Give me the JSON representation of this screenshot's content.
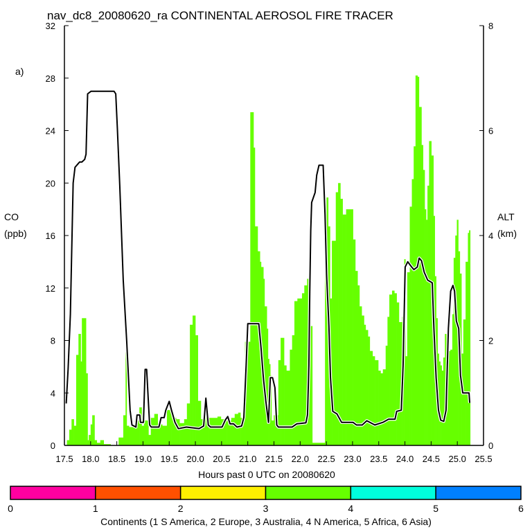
{
  "chart_data": {
    "type": "bar",
    "title": "nav_dc8_20080620_ra CONTINENTAL AEROSOL FIRE TRACER",
    "panel_label": "a)",
    "xlabel": "Hours past 0 UTC on 20080620",
    "ylabel": "CO",
    "ylabel_units": "(ppb)",
    "y2label": "ALT",
    "y2label_units": "(km)",
    "xlim": [
      17.5,
      25.5
    ],
    "ylim": [
      0,
      32
    ],
    "y2lim": [
      0,
      8
    ],
    "xticks": [
      "17.5",
      "18.0",
      "18.5",
      "19.0",
      "19.5",
      "20.0",
      "20.5",
      "21.0",
      "21.5",
      "22.0",
      "22.5",
      "23.0",
      "23.5",
      "24.0",
      "24.5",
      "25.0",
      "25.5"
    ],
    "yticks": [
      "0",
      "4",
      "8",
      "12",
      "16",
      "20",
      "24",
      "28",
      "32"
    ],
    "y2ticks": [
      "0",
      "2",
      "4",
      "6",
      "8"
    ],
    "bar_color": "#66ff00",
    "bars": {
      "name": "CO from N America (continent 4)",
      "x_start": [
        17.548,
        17.592,
        17.636,
        17.68,
        17.724,
        17.768,
        17.811,
        17.833,
        17.912,
        17.943,
        17.965,
        18.0,
        18.031,
        18.075,
        18.118,
        18.184,
        18.25,
        18.382,
        18.535,
        18.623,
        18.667,
        18.689,
        18.732,
        18.842,
        18.93,
        18.974,
        19.018,
        19.105,
        19.149,
        19.215,
        19.281,
        19.368,
        19.456,
        19.544,
        19.632,
        19.697,
        19.785,
        19.838,
        19.895,
        19.947,
        20.0,
        20.048,
        20.105,
        20.158,
        20.246,
        20.421,
        20.487,
        20.596,
        20.684,
        20.75,
        20.816,
        20.86,
        20.947,
        21.048,
        21.11,
        21.136,
        21.189,
        21.232,
        21.254,
        21.298,
        21.32,
        21.364,
        21.386,
        21.408,
        21.43,
        21.452,
        21.496,
        21.583,
        21.627,
        21.693,
        21.737,
        21.803,
        21.846,
        21.89,
        21.947,
        22.035,
        22.079,
        22.132,
        22.167,
        22.197,
        22.232,
        22.474,
        22.504,
        22.535,
        22.57,
        22.605,
        22.68,
        22.724,
        22.768,
        22.811,
        22.877,
        23.009,
        23.053,
        23.096,
        23.132,
        23.175,
        23.219,
        23.25,
        23.294,
        23.329,
        23.382,
        23.425,
        23.491,
        23.535,
        23.579,
        23.632,
        23.667,
        23.702,
        23.754,
        23.798,
        23.842,
        23.886,
        23.947,
        23.987,
        24.009,
        24.044,
        24.092,
        24.132,
        24.167,
        24.202,
        24.241,
        24.268,
        24.316,
        24.346,
        24.377,
        24.404,
        24.43,
        24.461,
        24.504,
        24.544,
        24.57,
        24.596,
        24.623,
        24.649,
        24.675,
        24.702,
        24.732,
        24.763,
        24.789,
        24.816,
        24.842,
        24.868,
        24.904,
        24.93,
        24.961,
        24.991,
        25.018,
        25.048,
        25.079,
        25.114,
        25.158,
        25.202,
        25.224
      ],
      "x_end": 25.246,
      "values": [
        0.4,
        1.2,
        2.0,
        1.5,
        6.9,
        8.5,
        6.4,
        9.7,
        5.5,
        0.4,
        0.8,
        1.6,
        2.3,
        0.4,
        0.2,
        0.4,
        0.1,
        0,
        0.6,
        2.3,
        7.1,
        1.5,
        1.4,
        1.9,
        2.9,
        1.5,
        1.9,
        0.8,
        2.1,
        2.4,
        1.6,
        1.5,
        2.7,
        2.1,
        2.0,
        1.7,
        2.0,
        3.2,
        9.2,
        9.9,
        8.4,
        3.4,
        2.0,
        2.3,
        2.1,
        2.2,
        2.0,
        1.9,
        2.1,
        2.4,
        2.5,
        2.1,
        7.9,
        25.4,
        22.7,
        16.7,
        14.8,
        14.0,
        13.6,
        12.7,
        10.6,
        8.9,
        6.6,
        6.2,
        5.3,
        1.9,
        2.3,
        6.5,
        8.2,
        6.1,
        5.7,
        7.3,
        8.4,
        11.0,
        11.2,
        11.6,
        12.2,
        12.7,
        11.6,
        9.1,
        0.2,
        14.4,
        18.9,
        16.7,
        11.2,
        15.6,
        19.3,
        20.0,
        18.8,
        17.6,
        18.0,
        15.7,
        13.3,
        12.2,
        10.6,
        9.9,
        9.2,
        8.8,
        8.3,
        7.2,
        6.8,
        6.5,
        5.7,
        5.5,
        5.8,
        7.6,
        9.8,
        11.5,
        11.8,
        11.6,
        10.9,
        9.4,
        9.8,
        14.2,
        6.8,
        13.2,
        18.2,
        20.3,
        22.8,
        28.2,
        28.1,
        25.8,
        22.9,
        21.0,
        18.0,
        17.2,
        19.8,
        23.2,
        22.1,
        17.5,
        12.9,
        9.7,
        7.0,
        6.4,
        6.1,
        5.7,
        6.7,
        8.5,
        7.2,
        7.1,
        7.2,
        7.3,
        10.0,
        14.3,
        16.0,
        17.2,
        14.8,
        13.1,
        7.0,
        9.6,
        14.0,
        16.2,
        16.4
      ]
    },
    "altitude_line": {
      "name": "ALT (km)",
      "x": [
        17.535,
        17.57,
        17.614,
        17.667,
        17.702,
        17.746,
        17.79,
        17.833,
        17.886,
        17.912,
        17.943,
        18.009,
        18.447,
        18.48,
        18.51,
        18.557,
        18.623,
        18.689,
        18.754,
        18.789,
        18.864,
        18.886,
        18.939,
        18.952,
        19.009,
        19.04,
        19.07,
        19.127,
        19.158,
        19.303,
        19.346,
        19.404,
        19.434,
        19.5,
        19.544,
        19.61,
        19.675,
        19.829,
        20.07,
        20.158,
        20.2,
        20.246,
        20.289,
        20.509,
        20.575,
        20.618,
        20.662,
        20.728,
        20.794,
        20.882,
        20.925,
        20.969,
        21.0,
        21.211,
        21.254,
        21.298,
        21.342,
        21.395,
        21.43,
        21.474,
        21.518,
        21.553,
        21.583,
        21.846,
        21.934,
        22.11,
        22.14,
        22.167,
        22.184,
        22.202,
        22.219,
        22.285,
        22.316,
        22.36,
        22.439,
        22.474,
        22.504,
        22.548,
        22.579,
        22.623,
        22.702,
        22.79,
        23.009,
        23.075,
        23.184,
        23.272,
        23.425,
        23.579,
        23.689,
        23.811,
        23.842,
        23.93,
        23.965,
        24.004,
        24.053,
        24.127,
        24.171,
        24.237,
        24.272,
        24.316,
        24.368,
        24.434,
        24.522,
        24.553,
        24.596,
        24.64,
        24.684,
        24.741,
        24.785,
        24.829,
        24.873,
        24.917,
        24.947,
        24.982,
        25.026,
        25.061,
        25.105,
        25.158,
        25.224,
        25.237
      ],
      "y": [
        0.8,
        1.45,
        2.5,
        5.0,
        5.3,
        5.35,
        5.4,
        5.4,
        5.45,
        5.55,
        6.7,
        6.75,
        6.75,
        6.7,
        6.05,
        4.95,
        3.15,
        1.99,
        0.67,
        0.39,
        0.35,
        0.58,
        0.58,
        0.44,
        0.44,
        1.45,
        1.45,
        0.39,
        0.35,
        0.35,
        0.53,
        0.53,
        0.67,
        0.84,
        0.67,
        0.44,
        0.32,
        0.35,
        0.32,
        0.37,
        0.9,
        0.39,
        0.35,
        0.35,
        0.49,
        0.55,
        0.41,
        0.41,
        0.35,
        0.37,
        0.53,
        1.52,
        2.32,
        2.32,
        1.85,
        1.29,
        0.86,
        0.44,
        1.29,
        1.29,
        1.1,
        0.39,
        0.35,
        0.35,
        0.41,
        0.43,
        0.58,
        1.52,
        2.94,
        4.1,
        4.63,
        4.82,
        5.15,
        5.34,
        5.34,
        4.4,
        3.27,
        2.28,
        1.29,
        0.65,
        0.6,
        0.44,
        0.44,
        0.39,
        0.39,
        0.47,
        0.39,
        0.44,
        0.5,
        0.5,
        0.65,
        0.67,
        1.52,
        3.4,
        3.5,
        3.4,
        3.35,
        3.4,
        3.57,
        3.52,
        3.3,
        3.15,
        3.1,
        2.23,
        1.29,
        0.67,
        0.48,
        0.46,
        0.67,
        2.23,
        2.94,
        3.05,
        2.94,
        2.37,
        2.23,
        1.33,
        1.0,
        1.0,
        1.0,
        0.81
      ]
    },
    "colorbar": {
      "label": "Continents (1 S America, 2 Europe, 3 Australia, 4 N America, 5 Africa, 6 Asia)",
      "ticks": [
        "0",
        "1",
        "2",
        "3",
        "4",
        "5",
        "6"
      ],
      "colors": [
        "#ff00a0",
        "#ff5000",
        "#fff000",
        "#66ff00",
        "#00ffdd",
        "#0080ff"
      ]
    }
  }
}
